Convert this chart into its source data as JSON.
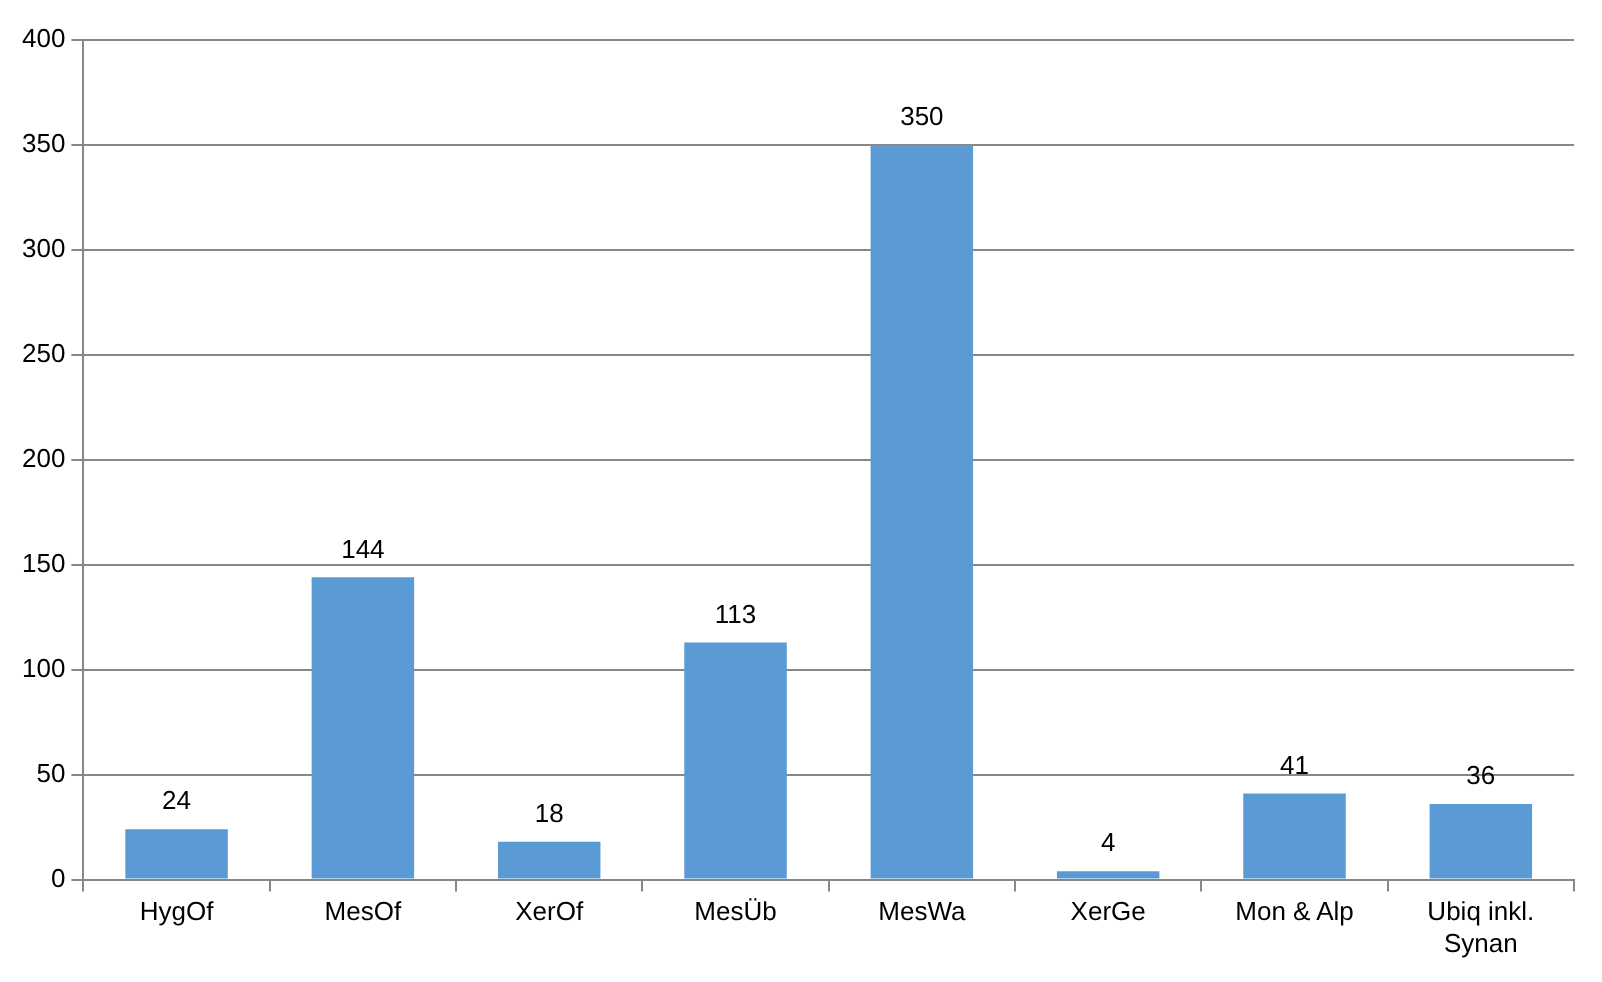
{
  "chart_data": {
    "type": "bar",
    "categories": [
      "HygOf",
      "MesOf",
      "XerOf",
      "MesÜb",
      "MesWa",
      "XerGe",
      "Mon & Alp",
      "Ubiq inkl. Synan"
    ],
    "values": [
      24,
      144,
      18,
      113,
      350,
      4,
      41,
      36
    ],
    "color": "#5b9bd5",
    "ylim": [
      0,
      400
    ],
    "yticks": [
      0,
      50,
      100,
      150,
      200,
      250,
      300,
      350,
      400
    ],
    "grid": "y",
    "data_labels": true
  }
}
